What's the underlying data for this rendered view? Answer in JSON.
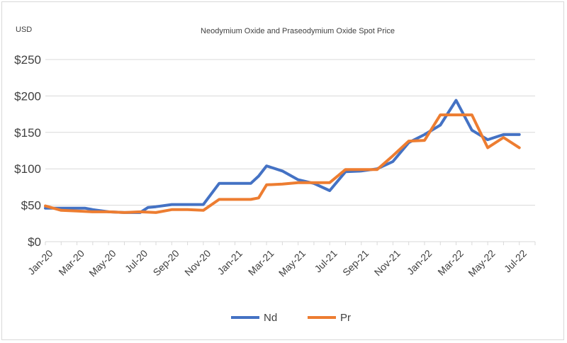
{
  "chart_data": {
    "type": "line",
    "title": "Neodymium Oxide and Praseodymium Oxide Spot Price",
    "ylabel": "USD",
    "xlabel": "",
    "ylim": [
      0,
      250
    ],
    "y_ticks": [
      0,
      50,
      100,
      150,
      200,
      250
    ],
    "y_tick_labels": [
      "$0",
      "$50",
      "$100",
      "$150",
      "$200",
      "$250"
    ],
    "x_tick_labels": [
      "Jan-20",
      "Mar-20",
      "May-20",
      "Jul-20",
      "Sep-20",
      "Nov-20",
      "Jan-21",
      "Mar-21",
      "May-21",
      "Jul-21",
      "Sep-21",
      "Nov-21",
      "Jan-22",
      "Mar-22",
      "May-22",
      "Jul-22"
    ],
    "x": [
      0,
      1,
      2,
      3,
      4,
      5,
      6,
      7,
      8,
      9,
      10,
      11,
      12,
      13,
      14,
      15,
      16,
      17,
      18,
      19,
      20,
      21,
      22,
      23,
      24,
      25,
      26,
      27,
      28,
      29,
      30,
      31
    ],
    "series": [
      {
        "name": "Nd",
        "color": "#4472C4",
        "points": [
          [
            0,
            46
          ],
          [
            1,
            46
          ],
          [
            2,
            46
          ],
          [
            2.5,
            46
          ],
          [
            3,
            44
          ],
          [
            4,
            41
          ],
          [
            5,
            40
          ],
          [
            6,
            40
          ],
          [
            6.5,
            47
          ],
          [
            7,
            48
          ],
          [
            8,
            51
          ],
          [
            9,
            51
          ],
          [
            10,
            51
          ],
          [
            11,
            80
          ],
          [
            12,
            80
          ],
          [
            13,
            80
          ],
          [
            13.5,
            90
          ],
          [
            14,
            104
          ],
          [
            15,
            97
          ],
          [
            16,
            85
          ],
          [
            17,
            80
          ],
          [
            18,
            70
          ],
          [
            19,
            96
          ],
          [
            20,
            97
          ],
          [
            21,
            100
          ],
          [
            22,
            110
          ],
          [
            23,
            136
          ],
          [
            24,
            147
          ],
          [
            25,
            160
          ],
          [
            26,
            194
          ],
          [
            27,
            153
          ],
          [
            28,
            140
          ],
          [
            29,
            147
          ],
          [
            30,
            147
          ]
        ]
      },
      {
        "name": "Pr",
        "color": "#ED7D31",
        "points": [
          [
            0,
            49
          ],
          [
            1,
            43
          ],
          [
            2,
            42
          ],
          [
            3,
            41
          ],
          [
            4,
            41
          ],
          [
            5,
            40
          ],
          [
            6,
            41
          ],
          [
            7,
            40
          ],
          [
            8,
            44
          ],
          [
            9,
            44
          ],
          [
            10,
            43
          ],
          [
            11,
            58
          ],
          [
            12,
            58
          ],
          [
            13,
            58
          ],
          [
            13.5,
            60
          ],
          [
            14,
            78
          ],
          [
            15,
            79
          ],
          [
            16,
            81
          ],
          [
            17,
            81
          ],
          [
            18,
            81
          ],
          [
            19,
            99
          ],
          [
            20,
            99
          ],
          [
            21,
            99
          ],
          [
            22,
            118
          ],
          [
            23,
            138
          ],
          [
            24,
            139
          ],
          [
            25,
            174
          ],
          [
            26,
            174
          ],
          [
            27,
            174
          ],
          [
            28,
            129
          ],
          [
            29,
            143
          ],
          [
            30,
            129
          ]
        ]
      }
    ],
    "legend": [
      "Nd",
      "Pr"
    ],
    "legend_position": "bottom",
    "grid": true
  }
}
